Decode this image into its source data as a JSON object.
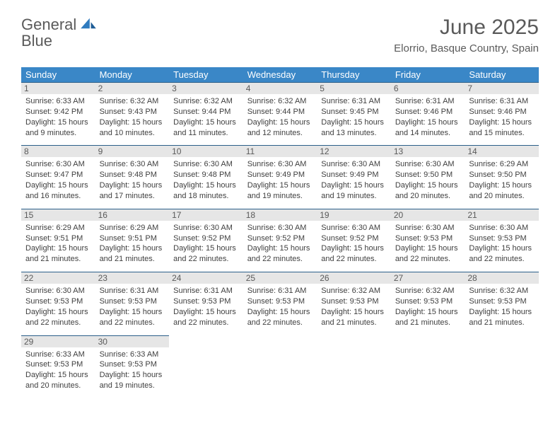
{
  "logo": {
    "word1": "General",
    "word2": "Blue"
  },
  "title": "June 2025",
  "location": "Elorrio, Basque Country, Spain",
  "colors": {
    "header_bg": "#3a87c7",
    "header_text": "#ffffff",
    "daynum_bg": "#e6e6e6",
    "text_dark": "#5a5a5a",
    "cell_text": "#404040",
    "row_border": "#2b5f8a",
    "logo_blue": "#2f7bbf"
  },
  "typography": {
    "title_fontsize": 30,
    "location_fontsize": 15,
    "dayhead_fontsize": 13,
    "daynum_fontsize": 12,
    "cell_fontsize": 11
  },
  "day_headers": [
    "Sunday",
    "Monday",
    "Tuesday",
    "Wednesday",
    "Thursday",
    "Friday",
    "Saturday"
  ],
  "weeks": [
    [
      {
        "n": "1",
        "sr": "6:33 AM",
        "ss": "9:42 PM",
        "dl1": "Daylight: 15 hours",
        "dl2": "and 9 minutes."
      },
      {
        "n": "2",
        "sr": "6:32 AM",
        "ss": "9:43 PM",
        "dl1": "Daylight: 15 hours",
        "dl2": "and 10 minutes."
      },
      {
        "n": "3",
        "sr": "6:32 AM",
        "ss": "9:44 PM",
        "dl1": "Daylight: 15 hours",
        "dl2": "and 11 minutes."
      },
      {
        "n": "4",
        "sr": "6:32 AM",
        "ss": "9:44 PM",
        "dl1": "Daylight: 15 hours",
        "dl2": "and 12 minutes."
      },
      {
        "n": "5",
        "sr": "6:31 AM",
        "ss": "9:45 PM",
        "dl1": "Daylight: 15 hours",
        "dl2": "and 13 minutes."
      },
      {
        "n": "6",
        "sr": "6:31 AM",
        "ss": "9:46 PM",
        "dl1": "Daylight: 15 hours",
        "dl2": "and 14 minutes."
      },
      {
        "n": "7",
        "sr": "6:31 AM",
        "ss": "9:46 PM",
        "dl1": "Daylight: 15 hours",
        "dl2": "and 15 minutes."
      }
    ],
    [
      {
        "n": "8",
        "sr": "6:30 AM",
        "ss": "9:47 PM",
        "dl1": "Daylight: 15 hours",
        "dl2": "and 16 minutes."
      },
      {
        "n": "9",
        "sr": "6:30 AM",
        "ss": "9:48 PM",
        "dl1": "Daylight: 15 hours",
        "dl2": "and 17 minutes."
      },
      {
        "n": "10",
        "sr": "6:30 AM",
        "ss": "9:48 PM",
        "dl1": "Daylight: 15 hours",
        "dl2": "and 18 minutes."
      },
      {
        "n": "11",
        "sr": "6:30 AM",
        "ss": "9:49 PM",
        "dl1": "Daylight: 15 hours",
        "dl2": "and 19 minutes."
      },
      {
        "n": "12",
        "sr": "6:30 AM",
        "ss": "9:49 PM",
        "dl1": "Daylight: 15 hours",
        "dl2": "and 19 minutes."
      },
      {
        "n": "13",
        "sr": "6:30 AM",
        "ss": "9:50 PM",
        "dl1": "Daylight: 15 hours",
        "dl2": "and 20 minutes."
      },
      {
        "n": "14",
        "sr": "6:29 AM",
        "ss": "9:50 PM",
        "dl1": "Daylight: 15 hours",
        "dl2": "and 20 minutes."
      }
    ],
    [
      {
        "n": "15",
        "sr": "6:29 AM",
        "ss": "9:51 PM",
        "dl1": "Daylight: 15 hours",
        "dl2": "and 21 minutes."
      },
      {
        "n": "16",
        "sr": "6:29 AM",
        "ss": "9:51 PM",
        "dl1": "Daylight: 15 hours",
        "dl2": "and 21 minutes."
      },
      {
        "n": "17",
        "sr": "6:30 AM",
        "ss": "9:52 PM",
        "dl1": "Daylight: 15 hours",
        "dl2": "and 22 minutes."
      },
      {
        "n": "18",
        "sr": "6:30 AM",
        "ss": "9:52 PM",
        "dl1": "Daylight: 15 hours",
        "dl2": "and 22 minutes."
      },
      {
        "n": "19",
        "sr": "6:30 AM",
        "ss": "9:52 PM",
        "dl1": "Daylight: 15 hours",
        "dl2": "and 22 minutes."
      },
      {
        "n": "20",
        "sr": "6:30 AM",
        "ss": "9:53 PM",
        "dl1": "Daylight: 15 hours",
        "dl2": "and 22 minutes."
      },
      {
        "n": "21",
        "sr": "6:30 AM",
        "ss": "9:53 PM",
        "dl1": "Daylight: 15 hours",
        "dl2": "and 22 minutes."
      }
    ],
    [
      {
        "n": "22",
        "sr": "6:30 AM",
        "ss": "9:53 PM",
        "dl1": "Daylight: 15 hours",
        "dl2": "and 22 minutes."
      },
      {
        "n": "23",
        "sr": "6:31 AM",
        "ss": "9:53 PM",
        "dl1": "Daylight: 15 hours",
        "dl2": "and 22 minutes."
      },
      {
        "n": "24",
        "sr": "6:31 AM",
        "ss": "9:53 PM",
        "dl1": "Daylight: 15 hours",
        "dl2": "and 22 minutes."
      },
      {
        "n": "25",
        "sr": "6:31 AM",
        "ss": "9:53 PM",
        "dl1": "Daylight: 15 hours",
        "dl2": "and 22 minutes."
      },
      {
        "n": "26",
        "sr": "6:32 AM",
        "ss": "9:53 PM",
        "dl1": "Daylight: 15 hours",
        "dl2": "and 21 minutes."
      },
      {
        "n": "27",
        "sr": "6:32 AM",
        "ss": "9:53 PM",
        "dl1": "Daylight: 15 hours",
        "dl2": "and 21 minutes."
      },
      {
        "n": "28",
        "sr": "6:32 AM",
        "ss": "9:53 PM",
        "dl1": "Daylight: 15 hours",
        "dl2": "and 21 minutes."
      }
    ],
    [
      {
        "n": "29",
        "sr": "6:33 AM",
        "ss": "9:53 PM",
        "dl1": "Daylight: 15 hours",
        "dl2": "and 20 minutes."
      },
      {
        "n": "30",
        "sr": "6:33 AM",
        "ss": "9:53 PM",
        "dl1": "Daylight: 15 hours",
        "dl2": "and 19 minutes."
      },
      {
        "empty": true
      },
      {
        "empty": true
      },
      {
        "empty": true
      },
      {
        "empty": true
      },
      {
        "empty": true
      }
    ]
  ],
  "labels": {
    "sunrise_prefix": "Sunrise: ",
    "sunset_prefix": "Sunset: "
  }
}
